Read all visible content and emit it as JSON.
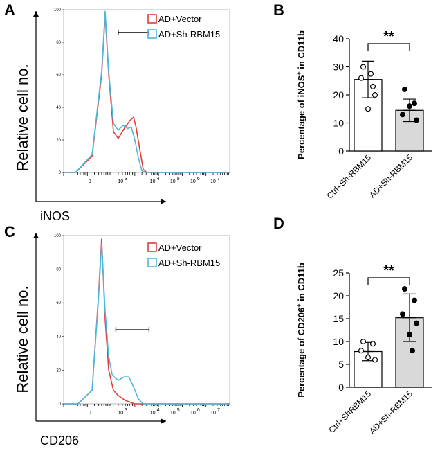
{
  "chart_data": [
    {
      "panel": "A",
      "type": "line",
      "xlabel": "iNOS",
      "ylabel": "Relative cell no.",
      "yticks": [
        "0",
        "20",
        "40",
        "60",
        "80",
        "100"
      ],
      "xticks": [
        "0",
        "10³",
        "10⁴",
        "10⁵",
        "10⁶",
        "10⁷"
      ],
      "xticks_exp": [
        null,
        "3",
        "4",
        "5",
        "6",
        "7"
      ],
      "xticks_base": [
        "0",
        "10",
        "10",
        "10",
        "10",
        "10"
      ],
      "ylim": [
        0,
        100
      ],
      "legend": [
        {
          "name": "AD+Vector",
          "color": "#e23b3b"
        },
        {
          "name": "AD+Sh-RBM15",
          "color": "#4db8db"
        }
      ],
      "series": [
        {
          "name": "AD+Vector",
          "color": "#e23b3b",
          "points": [
            [
              0.0,
              0
            ],
            [
              0.5,
              0
            ],
            [
              1.2,
              10
            ],
            [
              1.6,
              60
            ],
            [
              1.75,
              97
            ],
            [
              1.9,
              60
            ],
            [
              2.1,
              25
            ],
            [
              2.3,
              21
            ],
            [
              2.6,
              28
            ],
            [
              2.8,
              32
            ],
            [
              2.95,
              34
            ],
            [
              3.05,
              28
            ],
            [
              3.2,
              15
            ],
            [
              3.35,
              2
            ],
            [
              3.5,
              0
            ],
            [
              5,
              0
            ],
            [
              7,
              0
            ]
          ]
        },
        {
          "name": "AD+Sh-RBM15",
          "color": "#4db8db",
          "points": [
            [
              0.0,
              0
            ],
            [
              0.5,
              0
            ],
            [
              1.2,
              11
            ],
            [
              1.6,
              62
            ],
            [
              1.75,
              99
            ],
            [
              1.9,
              62
            ],
            [
              2.1,
              30
            ],
            [
              2.3,
              26
            ],
            [
              2.5,
              29
            ],
            [
              2.7,
              27
            ],
            [
              2.85,
              28
            ],
            [
              3.0,
              20
            ],
            [
              3.15,
              9
            ],
            [
              3.3,
              1
            ],
            [
              3.5,
              0
            ],
            [
              5,
              0
            ],
            [
              7,
              0
            ]
          ]
        }
      ],
      "gate": [
        2.3,
        3.6,
        86
      ]
    },
    {
      "panel": "C",
      "type": "line",
      "xlabel": "CD206",
      "ylabel": "Relative cell no.",
      "yticks": [
        "0",
        "20",
        "40",
        "60",
        "80",
        "100"
      ],
      "xticks": [
        "0",
        "10³",
        "10⁴",
        "10⁵",
        "10⁶",
        "10⁷"
      ],
      "xticks_exp": [
        null,
        "3",
        "4",
        "5",
        "6",
        "7"
      ],
      "xticks_base": [
        "0",
        "10",
        "10",
        "10",
        "10",
        "10"
      ],
      "ylim": [
        0,
        100
      ],
      "legend": [
        {
          "name": "AD+Vector",
          "color": "#e23b3b"
        },
        {
          "name": "AD+Sh-RBM15",
          "color": "#4db8db"
        }
      ],
      "series": [
        {
          "name": "AD+Vector",
          "color": "#e23b3b",
          "points": [
            [
              0.0,
              0
            ],
            [
              0.6,
              0
            ],
            [
              1.2,
              8
            ],
            [
              1.45,
              60
            ],
            [
              1.6,
              98
            ],
            [
              1.75,
              50
            ],
            [
              1.9,
              20
            ],
            [
              2.1,
              8
            ],
            [
              2.3,
              5
            ],
            [
              2.6,
              2
            ],
            [
              3.0,
              0
            ],
            [
              5,
              0
            ],
            [
              7,
              0
            ]
          ]
        },
        {
          "name": "AD+Sh-RBM15",
          "color": "#4db8db",
          "points": [
            [
              0.0,
              0
            ],
            [
              0.6,
              0
            ],
            [
              1.2,
              8
            ],
            [
              1.45,
              58
            ],
            [
              1.6,
              95
            ],
            [
              1.75,
              55
            ],
            [
              1.9,
              28
            ],
            [
              2.05,
              17
            ],
            [
              2.3,
              14
            ],
            [
              2.55,
              16
            ],
            [
              2.75,
              16
            ],
            [
              2.95,
              10
            ],
            [
              3.15,
              3
            ],
            [
              3.35,
              0
            ],
            [
              5,
              0
            ],
            [
              7,
              0
            ]
          ]
        }
      ],
      "gate": [
        2.2,
        3.6,
        44
      ]
    },
    {
      "panel": "B",
      "type": "bar",
      "ylabel_pre": "Percentage of iNOS",
      "ylabel_sup": "+",
      "ylabel_post": " in CD11b",
      "categories": [
        "Ctrl+Sh-RBM15",
        "AD+Sh-RBM15"
      ],
      "values": [
        25.5,
        14.5
      ],
      "errors": [
        6.5,
        4.0
      ],
      "bar_colors": [
        "#ffffff",
        "#d9d9d9"
      ],
      "points": [
        [
          30,
          23,
          26,
          20,
          15,
          27.5
        ],
        [
          22,
          17,
          13,
          11,
          16
        ]
      ],
      "filled_points": [
        false,
        true
      ],
      "ylim": [
        0,
        40
      ],
      "yticks": [
        "0",
        "10",
        "20",
        "30",
        "40"
      ],
      "significance": "**"
    },
    {
      "panel": "D",
      "type": "bar",
      "ylabel_pre": "Percentage of CD206",
      "ylabel_sup": "+",
      "ylabel_post": " in CD11b",
      "categories": [
        "Ctrl+ShRBM15",
        "AD+Sh-RBM15"
      ],
      "values": [
        7.8,
        15.2
      ],
      "errors": [
        2.0,
        5.2
      ],
      "bar_colors": [
        "#ffffff",
        "#d9d9d9"
      ],
      "points": [
        [
          10,
          9.5,
          8,
          6,
          6.5
        ],
        [
          21.5,
          19,
          16,
          14,
          11.5,
          8
        ]
      ],
      "filled_points": [
        false,
        true
      ],
      "ylim": [
        0,
        25
      ],
      "yticks": [
        "0",
        "5",
        "10",
        "15",
        "20",
        "25"
      ],
      "significance": "**"
    }
  ],
  "panels": {
    "A": "A",
    "B": "B",
    "C": "C",
    "D": "D"
  }
}
